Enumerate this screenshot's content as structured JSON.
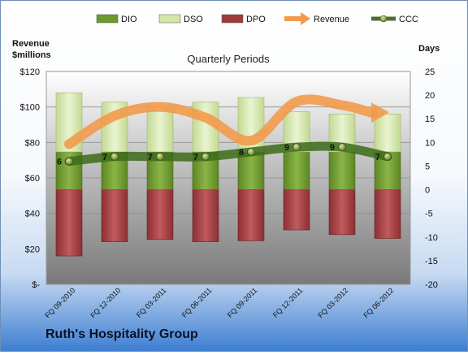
{
  "chart_data": {
    "type": "bar",
    "title": "Quarterly Periods",
    "company": "Ruth's Hospitality Group",
    "y_left_label": [
      "Revenue",
      "$millions"
    ],
    "y_right_label": "Days",
    "categories": [
      "FQ 09-2010",
      "FQ 12-2010",
      "FQ 03-2011",
      "FQ 06-2011",
      "FQ 09-2011",
      "FQ 12-2011",
      "FQ 03-2012",
      "FQ 06-2012"
    ],
    "y_left_ticks": [
      "$120",
      "$100",
      "$80",
      "$60",
      "$40",
      "$20",
      "$-"
    ],
    "y_left_range": [
      0,
      120
    ],
    "y_right_ticks": [
      "25",
      "20",
      "15",
      "10",
      "5",
      "0",
      "-5",
      "-10",
      "-15",
      "-20"
    ],
    "y_right_range": [
      -20,
      25
    ],
    "grid": true,
    "legend_position": "top",
    "series": [
      {
        "name": "DIO",
        "kind": "bar-stack",
        "axis": "right",
        "values": [
          8,
          8,
          8,
          8,
          8,
          8,
          8,
          8
        ],
        "color": "#6e9a2b"
      },
      {
        "name": "DSO",
        "kind": "bar-stack",
        "axis": "right",
        "values": [
          12.5,
          10.5,
          9.5,
          10.5,
          11.5,
          8.5,
          8,
          8
        ],
        "color": "#d4e6a5"
      },
      {
        "name": "DPO",
        "kind": "bar-negative",
        "axis": "right",
        "values": [
          -14,
          -11,
          -10.5,
          -11,
          -10.8,
          -8.5,
          -9.5,
          -10.3
        ],
        "color": "#9f3a3d"
      },
      {
        "name": "Revenue",
        "kind": "line",
        "axis": "left",
        "values": [
          79,
          95,
          100,
          94,
          81,
          103,
          101,
          97
        ],
        "color": "#f29a4b"
      },
      {
        "name": "CCC",
        "kind": "line",
        "axis": "right",
        "values": [
          6,
          7,
          7,
          7,
          8,
          9,
          9,
          7
        ],
        "data_labels": [
          "6",
          "7",
          "7",
          "7",
          "8",
          "9",
          "9",
          "7"
        ],
        "color": "#3d6b1a"
      }
    ],
    "legend": [
      {
        "name": "DIO",
        "swatch": "bar",
        "color": "#6e9a2b"
      },
      {
        "name": "DSO",
        "swatch": "bar",
        "color": "#d4e6a5"
      },
      {
        "name": "DPO",
        "swatch": "bar",
        "color": "#9f3a3d"
      },
      {
        "name": "Revenue",
        "swatch": "arrow",
        "color": "#f29a4b"
      },
      {
        "name": "CCC",
        "swatch": "line-dot",
        "color": "#556b2f"
      }
    ]
  }
}
